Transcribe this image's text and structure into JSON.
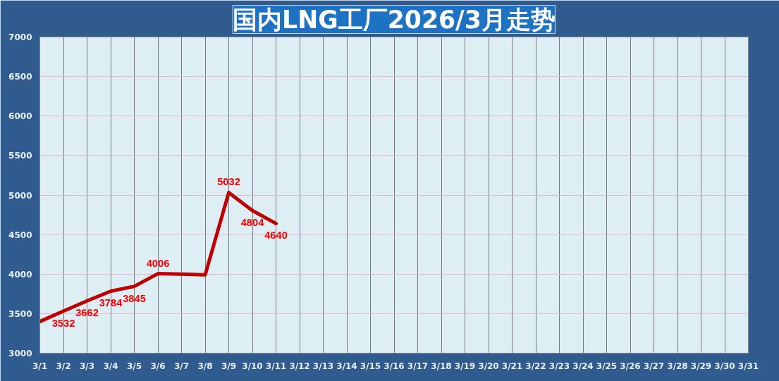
{
  "chart_data": {
    "type": "line",
    "title": "国内LNG工厂2026/3月走势",
    "categories": [
      "3/1",
      "3/2",
      "3/3",
      "3/4",
      "3/5",
      "3/6",
      "3/7",
      "3/8",
      "3/9",
      "3/10",
      "3/11",
      "3/12",
      "3/13",
      "3/14",
      "3/15",
      "3/16",
      "3/17",
      "3/18",
      "3/19",
      "3/20",
      "3/21",
      "3/22",
      "3/23",
      "3/24",
      "3/25",
      "3/26",
      "3/27",
      "3/28",
      "3/29",
      "3/30",
      "3/31"
    ],
    "series": [
      {
        "color": "#c00000",
        "values": [
          3400,
          3532,
          3662,
          3784,
          3845,
          4006,
          4000,
          3990,
          5032,
          4804,
          4640,
          null,
          null,
          null,
          null,
          null,
          null,
          null,
          null,
          null,
          null,
          null,
          null,
          null,
          null,
          null,
          null,
          null,
          null,
          null,
          null
        ],
        "value_labels": [
          null,
          "3532",
          "3662",
          "3784",
          "3845",
          "4006",
          null,
          null,
          "5032",
          "4804",
          "4640",
          null,
          null,
          null,
          null,
          null,
          null,
          null,
          null,
          null,
          null,
          null,
          null,
          null,
          null,
          null,
          null,
          null,
          null,
          null,
          null
        ]
      }
    ],
    "ylim": [
      3000,
      7000
    ],
    "yticks": [
      3000,
      3500,
      4000,
      4500,
      5000,
      5500,
      6000,
      6500,
      7000
    ],
    "grid": true,
    "marker": "none",
    "line_style": "solid"
  }
}
